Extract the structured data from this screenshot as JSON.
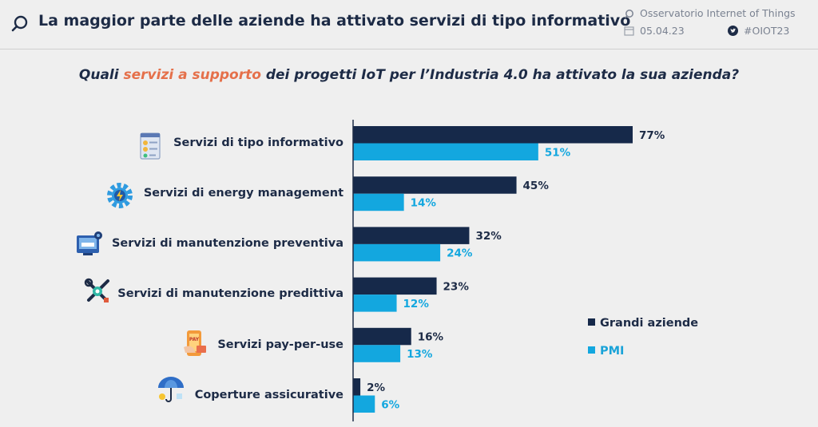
{
  "header": {
    "title": "La maggior parte delle aziende ha attivato servizi di tipo informativo",
    "observatory": "Osservatorio Internet of Things",
    "date": "05.04.23",
    "hashtag": "#OIOT23"
  },
  "question": {
    "prefix": "Quali ",
    "highlight": "servizi a supporto",
    "suffix": " dei progetti IoT per l’Industria 4.0 ha attivato la sua azienda?"
  },
  "colors": {
    "grandi": "#16294a",
    "pmi": "#13a7df",
    "accent": "#e5704a"
  },
  "icons": [
    "document-checklist-icon",
    "gear-bolt-icon",
    "monitor-gear-icon",
    "wrench-screwdriver-icon",
    "pay-phone-icon",
    "umbrella-coins-icon"
  ],
  "chart_data": {
    "type": "bar",
    "orientation": "horizontal",
    "categories": [
      "Servizi di tipo informativo",
      "Servizi di energy management",
      "Servizi di manutenzione preventiva",
      "Servizi di manutenzione predittiva",
      "Servizi pay-per-use",
      "Coperture assicurative"
    ],
    "series": [
      {
        "name": "Grandi aziende",
        "values": [
          77,
          45,
          32,
          23,
          16,
          2
        ],
        "labels": [
          "77%",
          "45%",
          "32%",
          "23%",
          "16%",
          "2%"
        ]
      },
      {
        "name": "PMI",
        "values": [
          51,
          14,
          24,
          12,
          13,
          6
        ],
        "labels": [
          "51%",
          "14%",
          "24%",
          "12%",
          "13%",
          "6%"
        ]
      }
    ],
    "xlim": [
      0,
      100
    ],
    "legend_position": "right"
  }
}
